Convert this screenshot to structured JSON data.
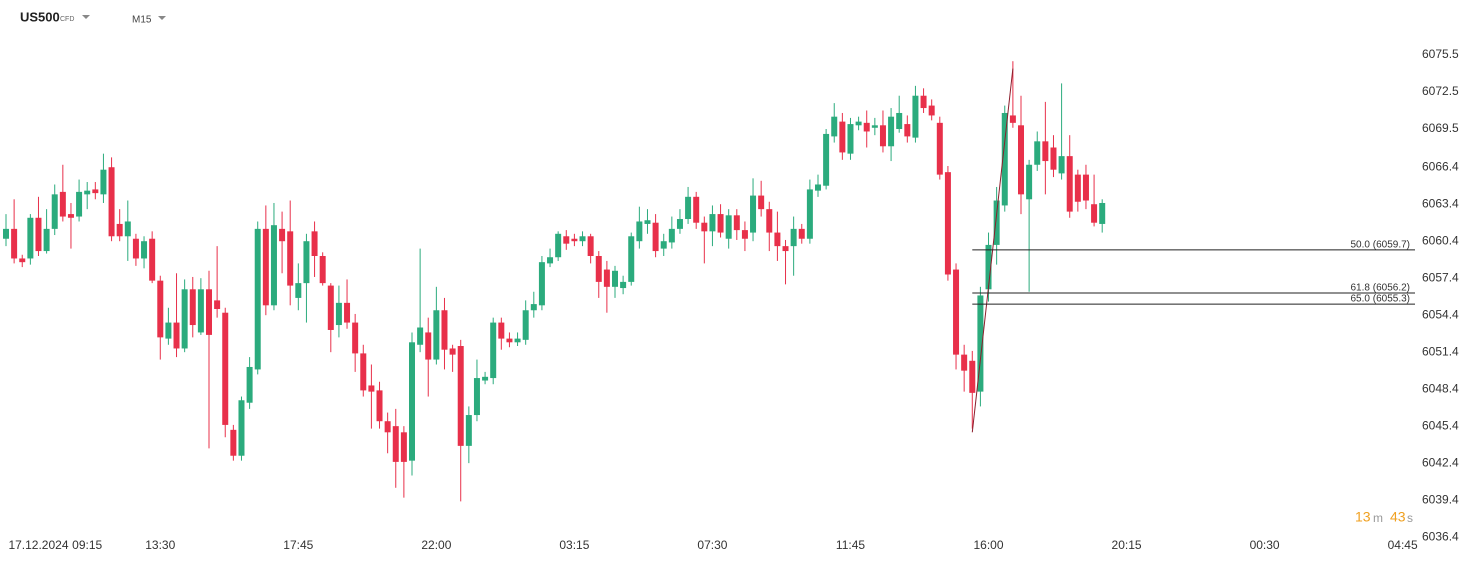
{
  "header": {
    "symbol": "US500",
    "symbol_type": "CFD",
    "timeframe": "M15"
  },
  "countdown": {
    "minutes": "13",
    "minutes_unit": "m",
    "seconds": "43",
    "seconds_unit": "s"
  },
  "chart_data": {
    "type": "candlestick",
    "up_color": "#2bab7d",
    "down_color": "#e8304a",
    "grid": false,
    "ylim": [
      6035.76,
      6077.53
    ],
    "yticks": [
      6075.5,
      6072.5,
      6069.5,
      6066.4,
      6063.4,
      6060.4,
      6057.4,
      6054.4,
      6051.4,
      6048.4,
      6045.4,
      6042.4,
      6039.4,
      6036.4
    ],
    "categories": [
      null,
      null,
      null,
      null,
      "17.12.2024",
      null,
      null,
      null,
      null,
      null,
      "09:15",
      null,
      null,
      null,
      null,
      null,
      null,
      null,
      null,
      "13:30",
      null,
      null,
      null,
      null,
      null,
      null,
      null,
      null,
      null,
      null,
      null,
      null,
      null,
      null,
      null,
      null,
      "17:45",
      null,
      null,
      null,
      null,
      null,
      null,
      null,
      null,
      null,
      null,
      null,
      null,
      null,
      null,
      null,
      null,
      "22:00",
      null,
      null,
      null,
      null,
      null,
      null,
      null,
      null,
      null,
      null,
      null,
      null,
      null,
      null,
      null,
      null,
      "03:15",
      null,
      null,
      null,
      null,
      null,
      null,
      null,
      null,
      null,
      null,
      null,
      null,
      null,
      null,
      null,
      null,
      "07:30",
      null,
      null,
      null,
      null,
      null,
      null,
      null,
      null,
      null,
      null,
      null,
      null,
      null,
      null,
      null,
      null,
      "11:45",
      null,
      null,
      null,
      null,
      null,
      null,
      null,
      null,
      null,
      null,
      null,
      null,
      null,
      null,
      null,
      null,
      "16:00",
      null,
      null,
      null,
      null,
      null,
      null,
      null,
      null,
      null,
      null,
      null,
      null,
      null,
      null,
      null,
      null,
      "20:15",
      null,
      null,
      null,
      null,
      null,
      null,
      null,
      null,
      null,
      null,
      null,
      null,
      null,
      null,
      null,
      null,
      "00:30",
      null,
      null,
      null,
      null,
      null,
      null,
      null,
      null,
      null,
      null,
      null,
      null,
      null,
      null,
      null,
      null,
      "04:45"
    ],
    "open": [
      6060.6,
      6061.4,
      6059.0,
      6059.0,
      6062.3,
      6059.6,
      6061.4,
      6064.4,
      6062.6,
      6062.4,
      6064.2,
      6064.6,
      6064.2,
      6066.4,
      6061.8,
      6060.8,
      6060.6,
      6059.0,
      6060.6,
      6057.2,
      6052.5,
      6053.8,
      6051.7,
      6056.5,
      6053.0,
      6056.5,
      6055.6,
      6054.6,
      6045.1,
      6043.0,
      6047.3,
      6050.0,
      6061.4,
      6055.2,
      6061.4,
      6061.2,
      6055.8,
      6057.0,
      6061.2,
      6059.2,
      6056.8,
      6053.6,
      6055.4,
      6053.8,
      6051.3,
      6048.7,
      6048.3,
      6045.8,
      6045.4,
      6044.9,
      6042.6,
      6052.0,
      6053.0,
      6050.8,
      6054.8,
      6051.7,
      6051.9,
      6043.8,
      6046.3,
      6049.1,
      6049.3,
      6053.8,
      6052.5,
      6052.2,
      6052.4,
      6054.8,
      6055.2,
      6058.6,
      6059.1,
      6060.8,
      6060.6,
      6060.4,
      6060.8,
      6059.2,
      6058.1,
      6056.7,
      6056.6,
      6057.1,
      6060.4,
      6061.8,
      6061.9,
      6059.8,
      6060.3,
      6061.4,
      6062.2,
      6064.0,
      6061.9,
      6061.2,
      6062.6,
      6060.6,
      6062.5,
      6061.3,
      6061.1,
      6064.1,
      6063.0,
      6061.1,
      6060.0,
      6060.0,
      6061.4,
      6060.6,
      6064.5,
      6064.9,
      6068.9,
      6070.1,
      6067.5,
      6069.8,
      6070.0,
      6069.6,
      6069.8,
      6068.1,
      6069.5,
      6069.9,
      6068.8,
      6072.2,
      6071.4,
      6070.0,
      6066.0,
      6058.1,
      6051.2,
      6050.7,
      6048.2,
      6056.5,
      6060.1,
      6063.3,
      6070.6,
      6069.8,
      6063.8,
      6066.6,
      6068.5,
      6068.0,
      6065.9,
      6067.3,
      6065.8,
      6065.8,
      6063.4,
      6061.8,
      null,
      null,
      null,
      null,
      null,
      null,
      null,
      null,
      null,
      null,
      null,
      null,
      null,
      null,
      null,
      null,
      null,
      null,
      null,
      null,
      null,
      null,
      null,
      null,
      null,
      null,
      null,
      null,
      null,
      null,
      null,
      null,
      null,
      null,
      null,
      null,
      null
    ],
    "high": [
      6062.6,
      6063.8,
      6059.3,
      6062.6,
      6064.0,
      6063.0,
      6065.0,
      6066.6,
      6063.5,
      6065.4,
      6065.2,
      6065.2,
      6067.5,
      6067.2,
      6063.0,
      6063.7,
      6061.0,
      6060.8,
      6061.2,
      6057.6,
      6055.0,
      6057.8,
      6057.3,
      6057.5,
      6057.4,
      6058.0,
      6060.0,
      6055.0,
      6045.5,
      6047.8,
      6051.0,
      6062.0,
      6063.3,
      6063.5,
      6062.8,
      6063.7,
      6058.6,
      6061.0,
      6062.0,
      6059.5,
      6057.0,
      6056.8,
      6057.3,
      6054.5,
      6052.0,
      6050.4,
      6049.0,
      6046.5,
      6046.8,
      6045.4,
      6053.0,
      6059.8,
      6054.2,
      6056.7,
      6055.8,
      6052.0,
      6052.4,
      6047.0,
      6050.8,
      6049.8,
      6054.2,
      6054.2,
      6053.0,
      6053.0,
      6055.6,
      6056.3,
      6059.2,
      6059.8,
      6061.2,
      6061.3,
      6061.0,
      6061.2,
      6061.0,
      6059.6,
      6058.8,
      6058.4,
      6057.6,
      6061.1,
      6063.2,
      6063.0,
      6062.6,
      6061.0,
      6062.4,
      6063.0,
      6064.8,
      6064.4,
      6062.4,
      6063.3,
      6063.4,
      6063.0,
      6063.0,
      6062.0,
      6065.5,
      6065.3,
      6063.6,
      6062.8,
      6060.5,
      6062.4,
      6061.8,
      6065.4,
      6065.8,
      6069.5,
      6071.6,
      6070.8,
      6070.4,
      6070.5,
      6071.0,
      6070.4,
      6071.0,
      6071.2,
      6072.2,
      6070.6,
      6073.0,
      6072.8,
      6071.9,
      6070.5,
      6066.5,
      6058.6,
      6052.0,
      6051.5,
      6056.7,
      6061.1,
      6064.8,
      6071.4,
      6075.0,
      6072.2,
      6067.0,
      6069.3,
      6071.7,
      6069.0,
      6073.2,
      6069.0,
      6066.2,
      6066.6,
      6065.8,
      6063.8,
      null,
      null,
      null,
      null,
      null,
      null,
      null,
      null,
      null,
      null,
      null,
      null,
      null,
      null,
      null,
      null,
      null,
      null,
      null,
      null,
      null,
      null,
      null,
      null,
      null,
      null,
      null,
      null,
      null,
      null,
      null,
      null,
      null,
      null,
      null,
      null,
      null
    ],
    "low": [
      6060.0,
      6058.6,
      6058.3,
      6058.5,
      6059.2,
      6059.4,
      6060.9,
      6062.0,
      6059.8,
      6062.0,
      6063.0,
      6063.8,
      6063.5,
      6060.4,
      6060.4,
      6058.8,
      6058.4,
      6058.2,
      6057.0,
      6050.8,
      6052.0,
      6051.0,
      6051.4,
      6052.6,
      6052.8,
      6043.6,
      6054.2,
      6044.5,
      6042.6,
      6042.6,
      6046.8,
      6049.6,
      6054.4,
      6054.8,
      6057.8,
      6055.2,
      6054.8,
      6053.8,
      6057.5,
      6056.8,
      6051.4,
      6052.6,
      6053.3,
      6049.8,
      6047.8,
      6045.2,
      6045.2,
      6043.2,
      6040.4,
      6039.6,
      6041.4,
      6051.4,
      6047.8,
      6050.4,
      6050.0,
      6049.8,
      6039.3,
      6042.4,
      6045.8,
      6048.8,
      6048.8,
      6051.6,
      6051.8,
      6051.9,
      6052.0,
      6054.2,
      6054.8,
      6058.3,
      6058.8,
      6059.7,
      6060.0,
      6060.0,
      6058.6,
      6055.8,
      6054.6,
      6055.8,
      6056.1,
      6056.8,
      6059.8,
      6061.0,
      6059.1,
      6059.2,
      6059.8,
      6061.0,
      6061.8,
      6061.4,
      6058.6,
      6060.0,
      6060.7,
      6059.8,
      6060.5,
      6059.6,
      6060.4,
      6062.4,
      6059.6,
      6058.8,
      6056.9,
      6057.6,
      6060.2,
      6060.2,
      6064.0,
      6064.6,
      6068.4,
      6067.0,
      6067.0,
      6069.4,
      6068.0,
      6069.0,
      6067.6,
      6066.9,
      6069.2,
      6068.4,
      6068.4,
      6070.8,
      6070.2,
      6065.4,
      6057.2,
      6050.0,
      6048.2,
      6045.2,
      6047.0,
      6055.5,
      6058.5,
      6062.8,
      6069.6,
      6062.6,
      6056.3,
      6066.1,
      6064.2,
      6065.6,
      6065.4,
      6062.3,
      6062.8,
      6063.0,
      6061.6,
      6061.1,
      null,
      null,
      null,
      null,
      null,
      null,
      null,
      null,
      null,
      null,
      null,
      null,
      null,
      null,
      null,
      null,
      null,
      null,
      null,
      null,
      null,
      null,
      null,
      null,
      null,
      null,
      null,
      null,
      null,
      null,
      null,
      null,
      null,
      null,
      null,
      null,
      null
    ],
    "close": [
      6061.4,
      6059.0,
      6058.7,
      6062.3,
      6059.6,
      6061.4,
      6064.2,
      6062.4,
      6062.3,
      6064.4,
      6064.5,
      6064.3,
      6066.2,
      6060.8,
      6060.8,
      6062.0,
      6059.0,
      6060.4,
      6057.2,
      6052.6,
      6053.8,
      6051.7,
      6056.5,
      6053.6,
      6056.5,
      6052.8,
      6054.9,
      6045.5,
      6043.0,
      6047.5,
      6050.2,
      6061.4,
      6055.2,
      6061.7,
      6060.4,
      6056.8,
      6057.0,
      6060.4,
      6059.2,
      6057.0,
      6053.2,
      6055.4,
      6053.8,
      6051.3,
      6048.3,
      6048.2,
      6045.8,
      6044.9,
      6042.5,
      6042.5,
      6052.2,
      6053.4,
      6050.8,
      6054.8,
      6051.6,
      6051.2,
      6043.8,
      6046.3,
      6049.3,
      6049.4,
      6053.8,
      6052.5,
      6052.2,
      6052.5,
      6054.8,
      6055.3,
      6058.7,
      6059.1,
      6061.0,
      6060.2,
      6060.4,
      6060.8,
      6059.2,
      6057.1,
      6056.7,
      6058.0,
      6057.1,
      6060.8,
      6062.0,
      6062.1,
      6059.6,
      6060.4,
      6061.4,
      6062.2,
      6064.0,
      6061.9,
      6061.2,
      6062.6,
      6061.1,
      6062.5,
      6061.3,
      6060.6,
      6064.1,
      6063.0,
      6061.1,
      6060.0,
      6059.6,
      6061.4,
      6060.6,
      6064.6,
      6065.0,
      6069.1,
      6070.5,
      6067.6,
      6069.9,
      6070.1,
      6069.3,
      6069.8,
      6068.1,
      6070.5,
      6070.8,
      6068.9,
      6072.2,
      6071.2,
      6070.6,
      6065.8,
      6057.7,
      6051.2,
      6049.9,
      6048.1,
      6056.0,
      6060.1,
      6063.7,
      6070.8,
      6070.0,
      6064.2,
      6066.6,
      6068.5,
      6066.9,
      6066.2,
      6067.3,
      6062.8,
      6063.6,
      6063.7,
      6061.9,
      6063.5,
      null,
      null,
      null,
      null,
      null,
      null,
      null,
      null,
      null,
      null,
      null,
      null,
      null,
      null,
      null,
      null,
      null,
      null,
      null,
      null,
      null,
      null,
      null,
      null,
      null,
      null,
      null,
      null,
      null,
      null,
      null,
      null,
      null,
      null,
      null,
      null,
      null
    ],
    "fib_anchor": {
      "low": 6044.9,
      "high": 6074.4,
      "color": "#8b1e2c"
    },
    "fib_levels": [
      {
        "value": 6059.7,
        "label": "50.0 (6059.7)"
      },
      {
        "value": 6056.2,
        "label": "61.8 (6056.2)"
      },
      {
        "value": 6055.3,
        "label": "65.0 (6055.3)"
      }
    ],
    "fib_color": "#222222"
  }
}
